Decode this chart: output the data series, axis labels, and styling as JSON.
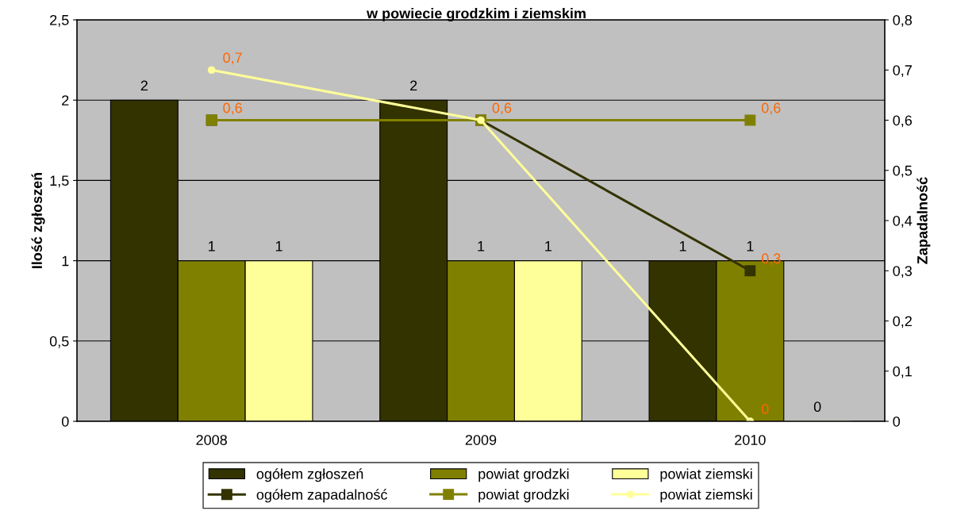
{
  "chart_data": {
    "type": "bar",
    "title": "w powiecie grodzkim i ziemskim",
    "ylabel": "Ilość zgłoszeń",
    "y2label": "Zapadalność",
    "categories": [
      "2008",
      "2009",
      "2010"
    ],
    "series": [
      {
        "name": "ogółem zgłoszeń",
        "color": "#333300",
        "values": [
          2,
          2,
          1
        ],
        "value_labels": [
          "2",
          "2",
          "1"
        ]
      },
      {
        "name": "powiat grodzki",
        "color": "#808000",
        "values": [
          1,
          1,
          1
        ],
        "value_labels": [
          "1",
          "1",
          "1"
        ]
      },
      {
        "name": "powiat ziemski",
        "color": "#ffff99",
        "values": [
          1,
          1,
          0
        ],
        "value_labels": [
          "1",
          "1",
          "0"
        ]
      },
      {
        "name": "ogółem zapadalność",
        "type": "line",
        "axis": "y2",
        "marker": "square",
        "color": "#333300",
        "values": [
          0.6,
          0.6,
          0.3
        ],
        "value_labels": [
          null,
          null,
          "0,3"
        ]
      },
      {
        "name": "powiat grodzki",
        "type": "line",
        "axis": "y2",
        "marker": "square",
        "color": "#808000",
        "values": [
          0.6,
          0.6,
          0.6
        ],
        "value_labels": [
          "0,6",
          null,
          "0,6"
        ]
      },
      {
        "name": "powiat ziemski",
        "type": "line",
        "axis": "y2",
        "marker": "circle",
        "color": "#ffff99",
        "values": [
          0.7,
          0.6,
          0
        ],
        "value_labels": [
          "0,7",
          "0,6",
          "0"
        ]
      }
    ],
    "ylim": [
      0,
      2.5
    ],
    "yticks": [
      0,
      {
        "value": 0.5,
        "label": "0,5"
      },
      1,
      {
        "value": 1.5,
        "label": "1,5"
      },
      2,
      {
        "value": 2.5,
        "label": "2,5"
      }
    ],
    "y2lim": [
      0,
      0.8
    ],
    "y2ticks": [
      0,
      {
        "value": 0.1,
        "label": "0,1"
      },
      {
        "value": 0.2,
        "label": "0,2"
      },
      {
        "value": 0.3,
        "label": "0,3"
      },
      {
        "value": 0.4,
        "label": "0,4"
      },
      {
        "value": 0.5,
        "label": "0,5"
      },
      {
        "value": 0.6,
        "label": "0,6"
      },
      {
        "value": 0.7,
        "label": "0,7"
      },
      {
        "value": 0.8,
        "label": "0,8"
      }
    ],
    "grid": "y",
    "legend": "bottom"
  }
}
